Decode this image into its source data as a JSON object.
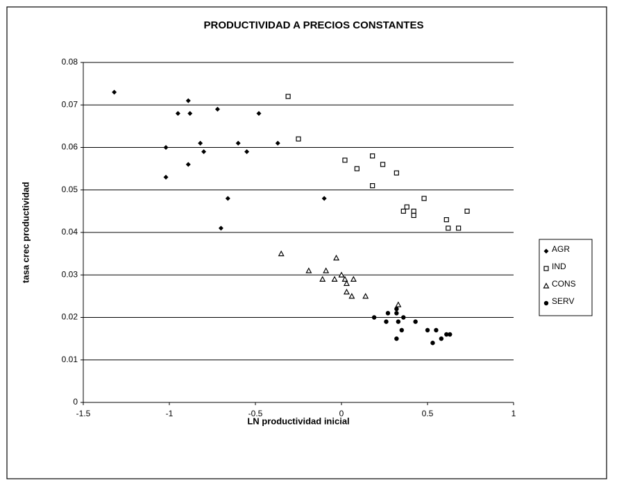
{
  "chart_data": {
    "type": "scatter",
    "title": "PRODUCTIVIDAD A PRECIOS CONSTANTES",
    "x_label": "LN productividad inicial",
    "y_label": "tasa crec productividad",
    "xlim": [
      -1.5,
      1
    ],
    "xticks": [
      -1.5,
      -1,
      -0.5,
      0,
      0.5,
      1
    ],
    "ylim": [
      0,
      0.08
    ],
    "yticks": [
      0,
      0.01,
      0.02,
      0.03,
      0.04,
      0.05,
      0.06,
      0.07,
      0.08
    ],
    "grid": true,
    "legend": "right",
    "series": [
      {
        "name": "AGR",
        "color": "#000000",
        "marker": "diamond",
        "x": [
          -1.32,
          -0.89,
          -0.95,
          -0.88,
          -0.72,
          -0.48,
          -1.02,
          -0.82,
          -0.8,
          -0.6,
          -0.55,
          -0.37,
          -1.02,
          -0.89,
          -0.66,
          -0.7,
          -0.1
        ],
        "values": [
          0.073,
          0.071,
          0.068,
          0.068,
          0.069,
          0.068,
          0.06,
          0.061,
          0.059,
          0.061,
          0.059,
          0.061,
          0.053,
          0.056,
          0.048,
          0.041,
          0.048
        ]
      },
      {
        "name": "IND",
        "color": "#000000",
        "marker": "square-open",
        "x": [
          -0.31,
          -0.25,
          0.02,
          0.18,
          0.09,
          0.24,
          0.18,
          0.32,
          0.48,
          0.38,
          0.36,
          0.42,
          0.42,
          0.61,
          0.62,
          0.68,
          0.73
        ],
        "values": [
          0.072,
          0.062,
          0.057,
          0.058,
          0.055,
          0.056,
          0.051,
          0.054,
          0.048,
          0.046,
          0.045,
          0.045,
          0.044,
          0.043,
          0.041,
          0.041,
          0.045
        ]
      },
      {
        "name": "CONS",
        "color": "#000000",
        "marker": "triangle",
        "x": [
          -0.35,
          -0.19,
          -0.09,
          -0.11,
          -0.03,
          -0.04,
          0.0,
          0.02,
          0.03,
          0.03,
          0.07,
          0.06,
          0.14,
          0.33
        ],
        "values": [
          0.035,
          0.031,
          0.031,
          0.029,
          0.034,
          0.029,
          0.03,
          0.029,
          0.028,
          0.026,
          0.029,
          0.025,
          0.025,
          0.023
        ]
      },
      {
        "name": "SERV",
        "color": "#000000",
        "marker": "circle",
        "x": [
          0.19,
          0.27,
          0.26,
          0.32,
          0.32,
          0.33,
          0.36,
          0.35,
          0.43,
          0.32,
          0.5,
          0.55,
          0.53,
          0.58,
          0.61,
          0.63
        ],
        "values": [
          0.02,
          0.021,
          0.019,
          0.021,
          0.022,
          0.019,
          0.02,
          0.017,
          0.019,
          0.015,
          0.017,
          0.017,
          0.014,
          0.015,
          0.016,
          0.016
        ]
      }
    ]
  }
}
